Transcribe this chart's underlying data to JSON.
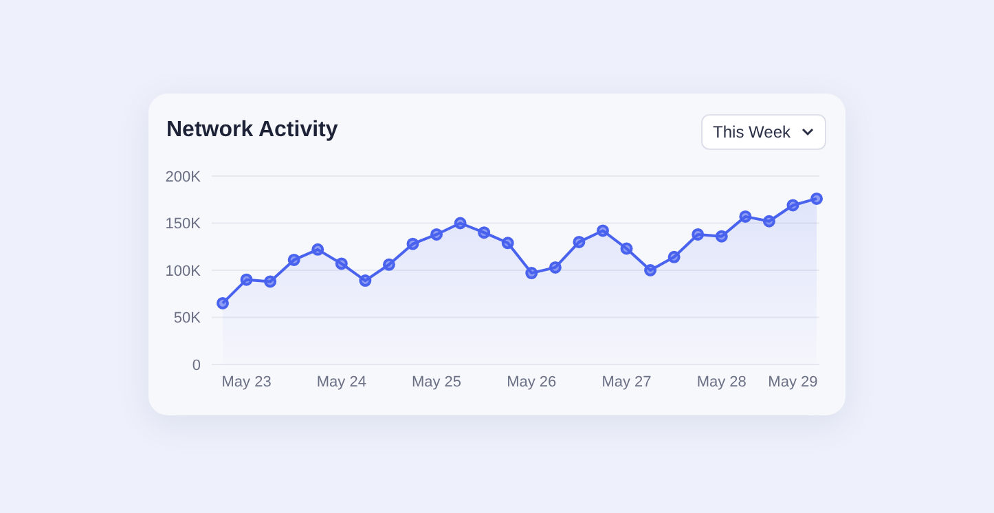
{
  "chart_data": {
    "type": "area",
    "title": "Network Activity",
    "annotations": [
      "This Week"
    ],
    "categories": [
      null,
      "May 23",
      null,
      null,
      null,
      "May 24",
      null,
      null,
      null,
      "May 25",
      null,
      null,
      null,
      "May 26",
      null,
      null,
      null,
      "May 27",
      null,
      null,
      null,
      "May 28",
      null,
      null,
      "May 29",
      null
    ],
    "series": [
      {
        "color": "#4a63ee",
        "values": [
          65000,
          90000,
          88000,
          111000,
          122000,
          107000,
          89000,
          106000,
          128000,
          138000,
          150000,
          140000,
          129000,
          97000,
          103000,
          130000,
          142000,
          123000,
          100000,
          114000,
          138000,
          136000,
          157000,
          152000,
          169000,
          176000
        ]
      }
    ],
    "ylim": [
      0,
      200000
    ],
    "yticks": [
      0,
      {
        "value": 50000,
        "label": "50K"
      },
      {
        "value": 100000,
        "label": "100K"
      },
      {
        "value": 150000,
        "label": "150K"
      },
      {
        "value": 200000,
        "label": "200K"
      }
    ],
    "grid": "y",
    "marker": "circle",
    "line_style": "solid"
  }
}
